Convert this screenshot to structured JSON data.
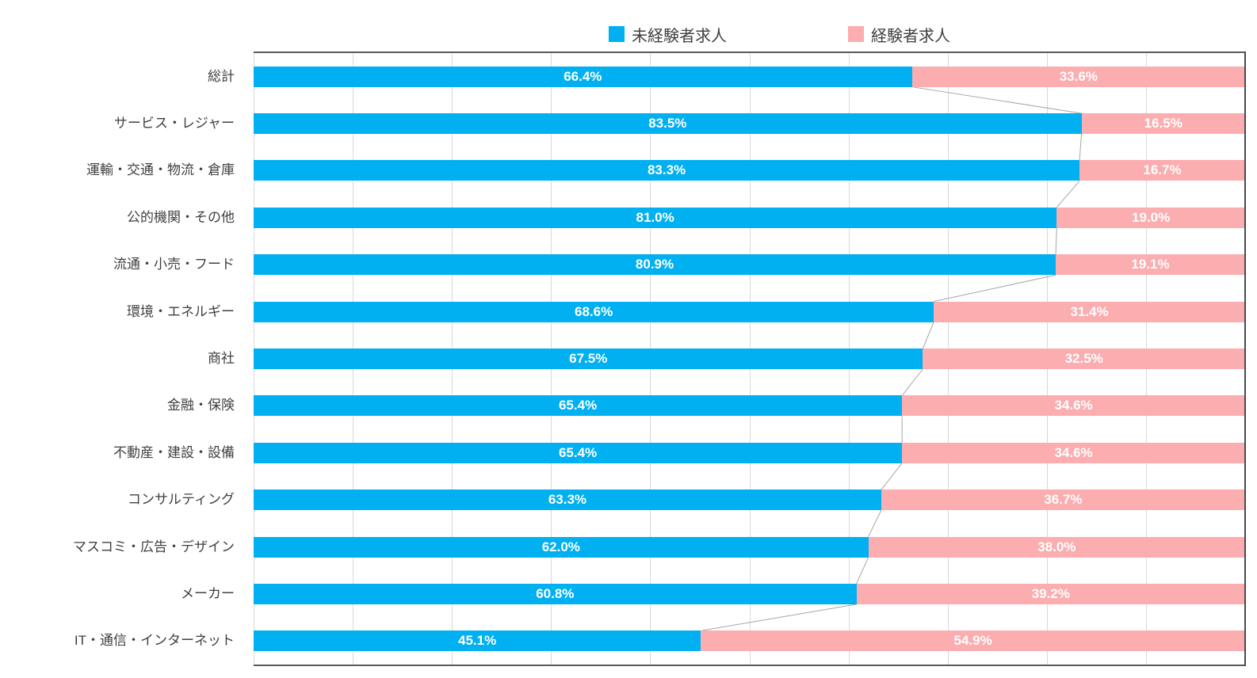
{
  "legend": {
    "items": [
      {
        "label": "未経験者求人",
        "color": "#00b0f0"
      },
      {
        "label": "経験者求人",
        "color": "#fbadb0"
      }
    ]
  },
  "colors": {
    "inexperienced": "#00b0f0",
    "experienced": "#fbadb0",
    "gridline": "#d9d9d9",
    "plot_border": "#595959",
    "connector_line": "#a6a6a6",
    "axis_text": "#404040",
    "bar_label_text": "#ffffff"
  },
  "chart_data": {
    "type": "bar",
    "orientation": "horizontal-stacked",
    "title": "",
    "xlabel": "",
    "ylabel": "",
    "xlim": [
      0,
      100
    ],
    "grid": "vertical, 10% intervals",
    "legend_position": "top",
    "value_format": "one decimal + %",
    "categories": [
      "総計",
      "サービス・レジャー",
      "運輸・交通・物流・倉庫",
      "公的機関・その他",
      "流通・小売・フード",
      "環境・エネルギー",
      "商社",
      "金融・保険",
      "不動産・建設・設備",
      "コンサルティング",
      "マスコミ・広告・デザイン",
      "メーカー",
      "IT・通信・インターネット"
    ],
    "series": [
      {
        "name": "未経験者求人",
        "color": "#00b0f0",
        "values": [
          66.4,
          83.5,
          83.3,
          81.0,
          80.9,
          68.6,
          67.5,
          65.4,
          65.4,
          63.3,
          62.0,
          60.8,
          45.1
        ]
      },
      {
        "name": "経験者求人",
        "color": "#fbadb0",
        "values": [
          33.6,
          16.5,
          16.7,
          19.0,
          19.1,
          31.4,
          32.5,
          34.6,
          34.6,
          36.7,
          38.0,
          39.2,
          54.9
        ]
      }
    ],
    "series_lines": true
  },
  "layout_values": {
    "legend_item_lefts": [
      768,
      1070
    ]
  }
}
